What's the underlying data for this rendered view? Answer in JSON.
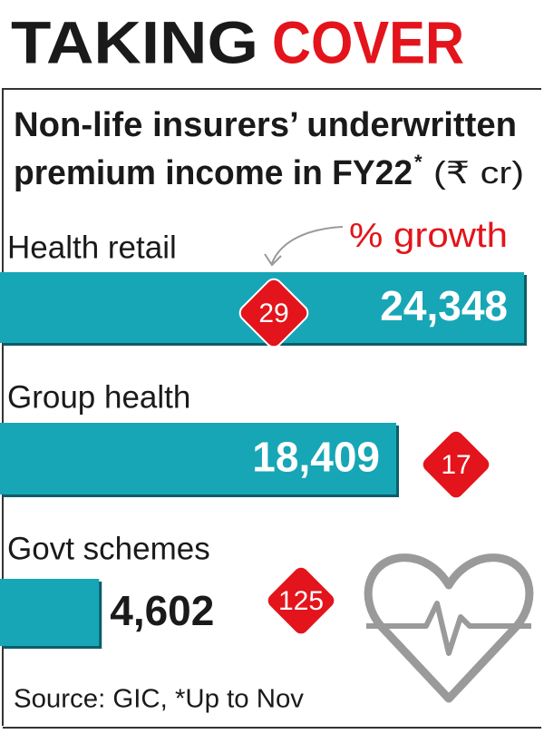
{
  "chart_data": {
    "type": "bar",
    "orientation": "horizontal",
    "title": [
      "TAKING",
      "COVER"
    ],
    "title_colors": [
      "#1a1a1a",
      "#e3141b"
    ],
    "subtitle": [
      "Non-life insurers’ underwritten",
      "premium income in FY22"
    ],
    "subtitle_mark": "*",
    "unit": "(₹ cr)",
    "categories": [
      "Health retail",
      "Group health",
      "Govt schemes"
    ],
    "values": [
      24348,
      18409,
      4602
    ],
    "value_labels": [
      "24,348",
      "18,409",
      "4,602"
    ],
    "color": "#17a6b6",
    "growth": {
      "label": "% growth",
      "values": [
        29,
        17,
        125
      ],
      "color": "#e3141b"
    },
    "source": "Source: GIC, *Up to Nov"
  }
}
